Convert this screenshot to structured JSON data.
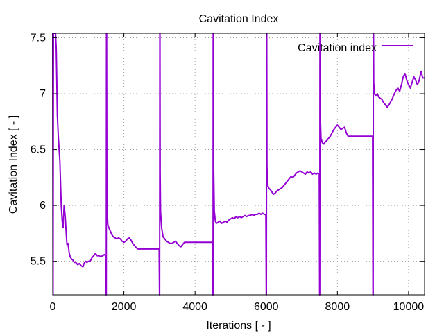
{
  "chart_data": {
    "type": "line",
    "title": "Cavitation Index",
    "xlabel": "Iterations [ - ]",
    "ylabel": "Cavitation Index [ - ]",
    "xlim": [
      0,
      10450
    ],
    "ylim": [
      5.2,
      7.54
    ],
    "x_ticks": [
      0,
      2000,
      4000,
      6000,
      8000,
      10000
    ],
    "y_ticks": [
      5.5,
      6,
      6.5,
      7,
      7.5
    ],
    "x_tick_labels": [
      "0",
      "2000",
      "4000",
      "6000",
      "8000",
      "10000"
    ],
    "y_tick_labels": [
      "5.5",
      "6",
      "6.5",
      "7",
      "7.5"
    ],
    "grid": true,
    "legend_position": "top-right",
    "colors": {
      "series": "#9400d3",
      "axis": "#000000",
      "grid": "#a0a0a0"
    },
    "series": [
      {
        "name": "Cavitation index",
        "points": [
          [
            0,
            7.54
          ],
          [
            10,
            5.2
          ],
          [
            20,
            7.54
          ],
          [
            40,
            7.54
          ],
          [
            60,
            7.54
          ],
          [
            80,
            7.54
          ],
          [
            100,
            7.4
          ],
          [
            130,
            6.8
          ],
          [
            160,
            6.6
          ],
          [
            200,
            6.4
          ],
          [
            240,
            6.0
          ],
          [
            270,
            5.85
          ],
          [
            290,
            5.8
          ],
          [
            320,
            6.0
          ],
          [
            350,
            5.9
          ],
          [
            380,
            5.75
          ],
          [
            400,
            5.65
          ],
          [
            430,
            5.66
          ],
          [
            460,
            5.58
          ],
          [
            490,
            5.54
          ],
          [
            530,
            5.52
          ],
          [
            570,
            5.51
          ],
          [
            610,
            5.49
          ],
          [
            650,
            5.49
          ],
          [
            700,
            5.47
          ],
          [
            750,
            5.48
          ],
          [
            800,
            5.46
          ],
          [
            850,
            5.45
          ],
          [
            880,
            5.48
          ],
          [
            920,
            5.5
          ],
          [
            960,
            5.49
          ],
          [
            1000,
            5.5
          ],
          [
            1050,
            5.5
          ],
          [
            1100,
            5.53
          ],
          [
            1150,
            5.55
          ],
          [
            1200,
            5.57
          ],
          [
            1250,
            5.55
          ],
          [
            1300,
            5.55
          ],
          [
            1350,
            5.54
          ],
          [
            1400,
            5.55
          ],
          [
            1450,
            5.56
          ],
          [
            1490,
            5.55
          ],
          [
            1500,
            5.2
          ],
          [
            1505,
            5.2
          ],
          [
            1510,
            7.54
          ],
          [
            1515,
            7.54
          ],
          [
            1520,
            6.3
          ],
          [
            1530,
            5.95
          ],
          [
            1550,
            5.82
          ],
          [
            1580,
            5.8
          ],
          [
            1620,
            5.77
          ],
          [
            1660,
            5.74
          ],
          [
            1700,
            5.72
          ],
          [
            1750,
            5.71
          ],
          [
            1800,
            5.7
          ],
          [
            1850,
            5.71
          ],
          [
            1900,
            5.7
          ],
          [
            1950,
            5.68
          ],
          [
            2000,
            5.67
          ],
          [
            2050,
            5.68
          ],
          [
            2100,
            5.7
          ],
          [
            2150,
            5.71
          ],
          [
            2200,
            5.69
          ],
          [
            2250,
            5.66
          ],
          [
            2300,
            5.64
          ],
          [
            2350,
            5.62
          ],
          [
            2400,
            5.61
          ],
          [
            2500,
            5.61
          ],
          [
            2600,
            5.61
          ],
          [
            2700,
            5.61
          ],
          [
            2800,
            5.61
          ],
          [
            2900,
            5.61
          ],
          [
            2990,
            5.61
          ],
          [
            3000,
            5.2
          ],
          [
            3005,
            5.2
          ],
          [
            3010,
            7.54
          ],
          [
            3015,
            7.54
          ],
          [
            3020,
            6.3
          ],
          [
            3030,
            5.95
          ],
          [
            3060,
            5.8
          ],
          [
            3100,
            5.72
          ],
          [
            3150,
            5.7
          ],
          [
            3200,
            5.68
          ],
          [
            3250,
            5.67
          ],
          [
            3300,
            5.66
          ],
          [
            3350,
            5.66
          ],
          [
            3400,
            5.67
          ],
          [
            3450,
            5.68
          ],
          [
            3500,
            5.66
          ],
          [
            3550,
            5.64
          ],
          [
            3600,
            5.63
          ],
          [
            3650,
            5.65
          ],
          [
            3700,
            5.67
          ],
          [
            3800,
            5.67
          ],
          [
            3900,
            5.67
          ],
          [
            4000,
            5.67
          ],
          [
            4100,
            5.67
          ],
          [
            4200,
            5.67
          ],
          [
            4300,
            5.67
          ],
          [
            4400,
            5.67
          ],
          [
            4490,
            5.67
          ],
          [
            4500,
            5.2
          ],
          [
            4505,
            5.2
          ],
          [
            4510,
            7.54
          ],
          [
            4515,
            7.54
          ],
          [
            4520,
            6.4
          ],
          [
            4540,
            5.95
          ],
          [
            4570,
            5.86
          ],
          [
            4600,
            5.84
          ],
          [
            4650,
            5.85
          ],
          [
            4700,
            5.86
          ],
          [
            4750,
            5.84
          ],
          [
            4800,
            5.85
          ],
          [
            4850,
            5.86
          ],
          [
            4900,
            5.85
          ],
          [
            4950,
            5.87
          ],
          [
            5000,
            5.88
          ],
          [
            5050,
            5.89
          ],
          [
            5100,
            5.88
          ],
          [
            5150,
            5.9
          ],
          [
            5200,
            5.89
          ],
          [
            5250,
            5.9
          ],
          [
            5300,
            5.89
          ],
          [
            5350,
            5.9
          ],
          [
            5400,
            5.91
          ],
          [
            5450,
            5.9
          ],
          [
            5500,
            5.91
          ],
          [
            5550,
            5.91
          ],
          [
            5600,
            5.92
          ],
          [
            5650,
            5.91
          ],
          [
            5700,
            5.92
          ],
          [
            5750,
            5.92
          ],
          [
            5800,
            5.93
          ],
          [
            5850,
            5.92
          ],
          [
            5900,
            5.93
          ],
          [
            5950,
            5.92
          ],
          [
            5990,
            5.92
          ],
          [
            6000,
            5.2
          ],
          [
            6005,
            5.2
          ],
          [
            6010,
            7.54
          ],
          [
            6015,
            7.54
          ],
          [
            6020,
            6.35
          ],
          [
            6040,
            6.18
          ],
          [
            6080,
            6.15
          ],
          [
            6120,
            6.14
          ],
          [
            6160,
            6.12
          ],
          [
            6200,
            6.1
          ],
          [
            6250,
            6.11
          ],
          [
            6300,
            6.13
          ],
          [
            6350,
            6.14
          ],
          [
            6400,
            6.15
          ],
          [
            6450,
            6.16
          ],
          [
            6500,
            6.18
          ],
          [
            6550,
            6.2
          ],
          [
            6600,
            6.22
          ],
          [
            6650,
            6.24
          ],
          [
            6700,
            6.26
          ],
          [
            6750,
            6.25
          ],
          [
            6800,
            6.27
          ],
          [
            6850,
            6.29
          ],
          [
            6900,
            6.3
          ],
          [
            6950,
            6.31
          ],
          [
            7000,
            6.3
          ],
          [
            7050,
            6.29
          ],
          [
            7100,
            6.28
          ],
          [
            7150,
            6.3
          ],
          [
            7200,
            6.29
          ],
          [
            7250,
            6.3
          ],
          [
            7300,
            6.28
          ],
          [
            7350,
            6.29
          ],
          [
            7400,
            6.28
          ],
          [
            7450,
            6.29
          ],
          [
            7490,
            6.28
          ],
          [
            7500,
            5.2
          ],
          [
            7505,
            5.2
          ],
          [
            7510,
            7.54
          ],
          [
            7515,
            7.54
          ],
          [
            7520,
            6.8
          ],
          [
            7540,
            6.6
          ],
          [
            7580,
            6.56
          ],
          [
            7620,
            6.55
          ],
          [
            7660,
            6.57
          ],
          [
            7700,
            6.58
          ],
          [
            7750,
            6.6
          ],
          [
            7800,
            6.62
          ],
          [
            7850,
            6.65
          ],
          [
            7900,
            6.68
          ],
          [
            7950,
            6.7
          ],
          [
            8000,
            6.72
          ],
          [
            8050,
            6.7
          ],
          [
            8100,
            6.68
          ],
          [
            8150,
            6.69
          ],
          [
            8200,
            6.7
          ],
          [
            8250,
            6.65
          ],
          [
            8300,
            6.62
          ],
          [
            8400,
            6.62
          ],
          [
            8500,
            6.62
          ],
          [
            8600,
            6.62
          ],
          [
            8700,
            6.62
          ],
          [
            8800,
            6.62
          ],
          [
            8900,
            6.62
          ],
          [
            8990,
            6.62
          ],
          [
            9000,
            5.2
          ],
          [
            9005,
            5.2
          ],
          [
            9010,
            7.54
          ],
          [
            9015,
            7.54
          ],
          [
            9020,
            7.1
          ],
          [
            9040,
            7.0
          ],
          [
            9080,
            6.98
          ],
          [
            9120,
            7.0
          ],
          [
            9160,
            6.97
          ],
          [
            9200,
            6.96
          ],
          [
            9250,
            6.95
          ],
          [
            9300,
            6.92
          ],
          [
            9350,
            6.9
          ],
          [
            9400,
            6.88
          ],
          [
            9450,
            6.9
          ],
          [
            9500,
            6.93
          ],
          [
            9550,
            6.96
          ],
          [
            9600,
            7.0
          ],
          [
            9650,
            7.03
          ],
          [
            9700,
            7.05
          ],
          [
            9750,
            7.02
          ],
          [
            9800,
            7.08
          ],
          [
            9850,
            7.15
          ],
          [
            9900,
            7.18
          ],
          [
            9950,
            7.12
          ],
          [
            10000,
            7.08
          ],
          [
            10050,
            7.05
          ],
          [
            10100,
            7.1
          ],
          [
            10150,
            7.15
          ],
          [
            10200,
            7.12
          ],
          [
            10250,
            7.08
          ],
          [
            10300,
            7.12
          ],
          [
            10350,
            7.2
          ],
          [
            10400,
            7.14
          ],
          [
            10450,
            7.14
          ]
        ]
      }
    ]
  }
}
